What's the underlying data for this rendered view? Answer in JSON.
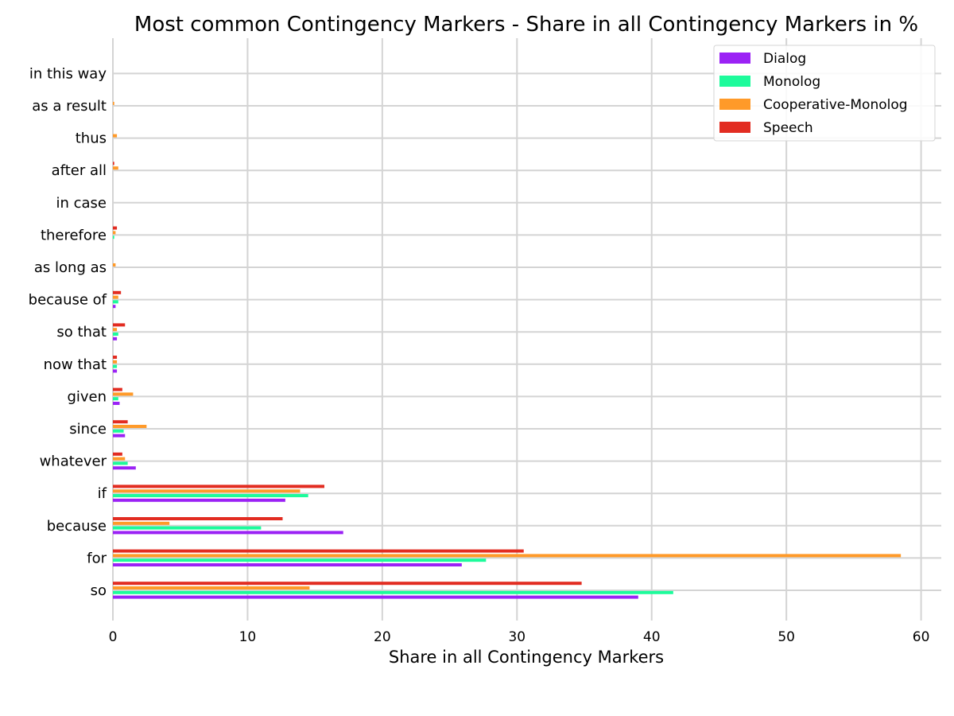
{
  "chart_data": {
    "type": "bar",
    "orientation": "horizontal",
    "title": "Most common Contingency Markers - Share in all Contingency Markers in %",
    "xlabel": "Share in all Contingency Markers",
    "ylabel": "",
    "xlim": [
      0,
      61.5
    ],
    "xticks": [
      "0",
      "10",
      "20",
      "30",
      "40",
      "50",
      "60"
    ],
    "grid": true,
    "legend_position": "top-right",
    "categories": [
      "so",
      "for",
      "because",
      "if",
      "whatever",
      "since",
      "given",
      "now that",
      "so that",
      "because of",
      "as long as",
      "therefore",
      "in case",
      "after all",
      "thus",
      "as a result",
      "in this way"
    ],
    "series": [
      {
        "name": "Dialog",
        "color": "#9b22f5",
        "values": [
          39.0,
          25.9,
          17.1,
          12.8,
          1.7,
          0.9,
          0.5,
          0.3,
          0.3,
          0.2,
          0.0,
          0.0,
          0.0,
          0.0,
          0.0,
          0.0,
          0.0
        ]
      },
      {
        "name": "Monolog",
        "color": "#1dfb9b",
        "values": [
          41.6,
          27.7,
          11.0,
          14.5,
          1.1,
          0.8,
          0.4,
          0.3,
          0.4,
          0.4,
          0.0,
          0.1,
          0.0,
          0.0,
          0.0,
          0.0,
          0.0
        ]
      },
      {
        "name": "Cooperative-Monolog",
        "color": "#ff9a29",
        "values": [
          14.6,
          58.5,
          4.2,
          13.9,
          0.9,
          2.5,
          1.5,
          0.3,
          0.3,
          0.4,
          0.2,
          0.2,
          0.0,
          0.4,
          0.3,
          0.1,
          0.0
        ]
      },
      {
        "name": "Speech",
        "color": "#e22c21",
        "values": [
          34.8,
          30.5,
          12.6,
          15.7,
          0.7,
          1.1,
          0.7,
          0.3,
          0.9,
          0.6,
          0.0,
          0.3,
          0.0,
          0.1,
          0.0,
          0.0,
          0.0
        ]
      }
    ]
  }
}
